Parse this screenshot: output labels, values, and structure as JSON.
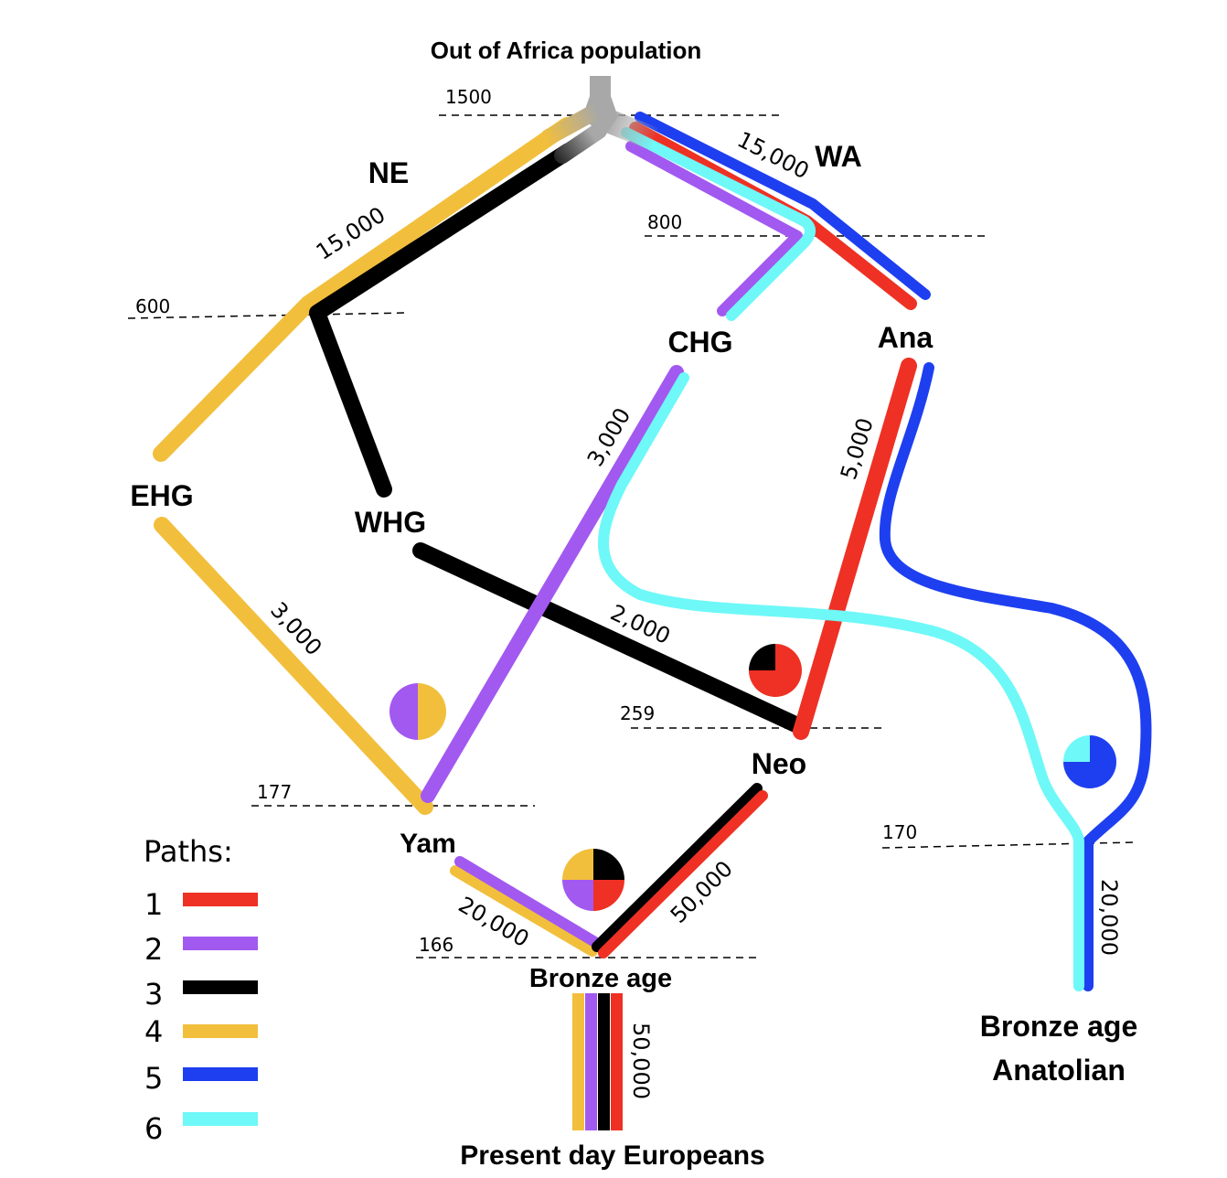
{
  "title": "Out of Africa population",
  "colors": {
    "path1": "#ee3124",
    "path2": "#a259f0",
    "path3": "#000000",
    "path4": "#f2bf3c",
    "path5": "#1e3ff0",
    "path6": "#6ef8f8",
    "root": "#a8a8a8"
  },
  "nodes": {
    "ne": "NE",
    "wa": "WA",
    "chg": "CHG",
    "ana": "Ana",
    "ehg": "EHG",
    "whg": "WHG",
    "neo": "Neo",
    "yam": "Yam",
    "bronze_age": "Bronze age",
    "bronze_age_anatolian_1": "Bronze age",
    "bronze_age_anatolian_2": "Anatolian",
    "present_day": "Present day Europeans"
  },
  "time_labels": {
    "t1500": "1500",
    "t800": "800",
    "t600": "600",
    "t259": "259",
    "t177": "177",
    "t170": "170",
    "t166": "166"
  },
  "size_labels": {
    "ne": "15,000",
    "wa": "15,000",
    "chg": "3,000",
    "ana": "5,000",
    "ehg": "3,000",
    "whg": "2,000",
    "neo": "50,000",
    "yam": "20,000",
    "anatolian": "20,000",
    "present": "50,000"
  },
  "legend": {
    "title": "Paths:",
    "items": [
      {
        "label": "1",
        "color": "#ee3124"
      },
      {
        "label": "2",
        "color": "#a259f0"
      },
      {
        "label": "3",
        "color": "#000000"
      },
      {
        "label": "4",
        "color": "#f2bf3c"
      },
      {
        "label": "5",
        "color": "#1e3ff0"
      },
      {
        "label": "6",
        "color": "#6ef8f8"
      }
    ]
  },
  "admixture_pies": {
    "yam": [
      {
        "color": "#f2bf3c",
        "fraction": 0.5
      },
      {
        "color": "#a259f0",
        "fraction": 0.5
      }
    ],
    "neo": [
      {
        "color": "#ee3124",
        "fraction": 0.75
      },
      {
        "color": "#000000",
        "fraction": 0.25
      }
    ],
    "bronze_age": [
      {
        "color": "#000000",
        "fraction": 0.25
      },
      {
        "color": "#ee3124",
        "fraction": 0.25
      },
      {
        "color": "#a259f0",
        "fraction": 0.25
      },
      {
        "color": "#f2bf3c",
        "fraction": 0.25
      }
    ],
    "anatolian": [
      {
        "color": "#1e3ff0",
        "fraction": 0.75
      },
      {
        "color": "#6ef8f8",
        "fraction": 0.25
      }
    ]
  }
}
